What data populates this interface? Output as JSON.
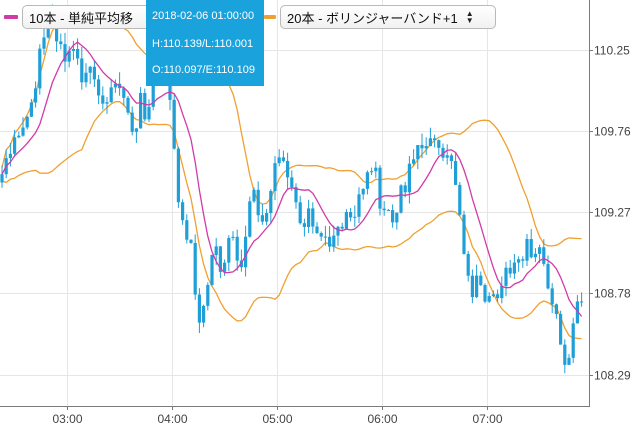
{
  "legend": {
    "items": [
      {
        "label": "10本 - 単純平均移",
        "color": "#d23aa7"
      },
      {
        "label": "20本 - ボリンジャーバンド+1",
        "color": "#f0a030"
      }
    ]
  },
  "tooltip": {
    "time": "2018-02-06 01:00:00",
    "hl": "H:110.139/L:110.001",
    "oe": "O:110.097/E:110.109"
  },
  "chart_data": {
    "type": "candlestick",
    "x_ticks": [
      "03:00",
      "04:00",
      "05:00",
      "06:00",
      "07:00"
    ],
    "y_ticks": [
      108.29,
      108.78,
      109.27,
      109.76,
      110.25
    ],
    "ylim": [
      108.1,
      110.55
    ],
    "grid": true,
    "colors": {
      "candle": "#1e9fd8",
      "sma": "#d23aa7",
      "band": "#f0a030"
    },
    "series": [
      {
        "name": "10本 - 単純平均移",
        "color": "#d23aa7"
      },
      {
        "name": "20本 - ボリンジャーバンド+1",
        "color": "#f0a030"
      }
    ],
    "price_path": [
      [
        0,
        109.45
      ],
      [
        4,
        109.55
      ],
      [
        8,
        109.62
      ],
      [
        12,
        109.7
      ],
      [
        16,
        109.78
      ],
      [
        20,
        109.72
      ],
      [
        24,
        109.8
      ],
      [
        28,
        109.92
      ],
      [
        32,
        109.88
      ],
      [
        36,
        110.02
      ],
      [
        40,
        110.28
      ],
      [
        44,
        110.35
      ],
      [
        48,
        110.42
      ],
      [
        52,
        110.45
      ],
      [
        56,
        110.36
      ],
      [
        60,
        110.3
      ],
      [
        64,
        110.22
      ],
      [
        68,
        110.18
      ],
      [
        72,
        110.32
      ],
      [
        76,
        110.25
      ],
      [
        80,
        110.1
      ],
      [
        84,
        110.0
      ],
      [
        88,
        110.3
      ],
      [
        92,
        110.12
      ],
      [
        96,
        109.95
      ],
      [
        100,
        109.9
      ],
      [
        104,
        110.0
      ],
      [
        108,
        109.92
      ],
      [
        112,
        109.98
      ],
      [
        116,
        110.1
      ],
      [
        120,
        110.02
      ],
      [
        124,
        109.95
      ],
      [
        128,
        109.85
      ],
      [
        132,
        109.78
      ],
      [
        136,
        109.8
      ],
      [
        140,
        109.95
      ],
      [
        144,
        109.82
      ],
      [
        148,
        109.9
      ],
      [
        152,
        110.05
      ],
      [
        156,
        110.35
      ],
      [
        160,
        110.25
      ],
      [
        164,
        110.15
      ],
      [
        168,
        110.05
      ],
      [
        172,
        109.88
      ],
      [
        176,
        109.5
      ],
      [
        180,
        109.3
      ],
      [
        184,
        109.1
      ],
      [
        188,
        109.15
      ],
      [
        192,
        109.0
      ],
      [
        196,
        108.72
      ],
      [
        200,
        108.62
      ],
      [
        204,
        108.7
      ],
      [
        208,
        108.85
      ],
      [
        212,
        108.98
      ],
      [
        216,
        109.05
      ],
      [
        220,
        108.95
      ],
      [
        224,
        108.98
      ],
      [
        228,
        109.1
      ],
      [
        232,
        109.2
      ],
      [
        236,
        109.08
      ],
      [
        240,
        108.92
      ],
      [
        244,
        109.0
      ],
      [
        248,
        109.25
      ],
      [
        252,
        109.4
      ],
      [
        256,
        109.3
      ],
      [
        260,
        109.25
      ],
      [
        264,
        109.2
      ],
      [
        268,
        109.3
      ],
      [
        272,
        109.45
      ],
      [
        276,
        109.55
      ],
      [
        280,
        109.62
      ],
      [
        284,
        109.58
      ],
      [
        288,
        109.5
      ],
      [
        292,
        109.45
      ],
      [
        296,
        109.3
      ],
      [
        300,
        109.25
      ],
      [
        304,
        109.2
      ],
      [
        308,
        109.28
      ],
      [
        312,
        109.15
      ],
      [
        316,
        109.1
      ],
      [
        320,
        109.05
      ],
      [
        324,
        109.12
      ],
      [
        328,
        109.0
      ],
      [
        332,
        109.08
      ],
      [
        336,
        109.15
      ],
      [
        340,
        109.2
      ],
      [
        344,
        109.25
      ],
      [
        348,
        109.32
      ],
      [
        352,
        109.22
      ],
      [
        356,
        109.3
      ],
      [
        360,
        109.42
      ],
      [
        364,
        109.38
      ],
      [
        368,
        109.5
      ],
      [
        372,
        109.55
      ],
      [
        376,
        109.48
      ],
      [
        380,
        109.35
      ],
      [
        384,
        109.3
      ],
      [
        388,
        109.28
      ],
      [
        392,
        109.2
      ],
      [
        396,
        109.3
      ],
      [
        400,
        109.38
      ],
      [
        404,
        109.35
      ],
      [
        408,
        109.5
      ],
      [
        412,
        109.55
      ],
      [
        416,
        109.62
      ],
      [
        420,
        109.75
      ],
      [
        424,
        109.65
      ],
      [
        428,
        109.62
      ],
      [
        432,
        109.7
      ],
      [
        436,
        109.75
      ],
      [
        440,
        109.7
      ],
      [
        444,
        109.62
      ],
      [
        448,
        109.58
      ],
      [
        452,
        109.55
      ],
      [
        456,
        109.4
      ],
      [
        460,
        109.2
      ],
      [
        464,
        109.05
      ],
      [
        468,
        108.85
      ],
      [
        472,
        108.78
      ],
      [
        476,
        108.95
      ],
      [
        480,
        108.9
      ],
      [
        484,
        108.8
      ],
      [
        488,
        108.75
      ],
      [
        492,
        108.78
      ],
      [
        496,
        108.65
      ],
      [
        500,
        108.8
      ],
      [
        504,
        108.95
      ],
      [
        508,
        108.92
      ],
      [
        512,
        108.98
      ],
      [
        516,
        109.0
      ],
      [
        520,
        108.98
      ],
      [
        524,
        109.05
      ],
      [
        528,
        109.15
      ],
      [
        532,
        109.0
      ],
      [
        536,
        109.05
      ],
      [
        540,
        109.02
      ],
      [
        544,
        109.0
      ],
      [
        548,
        108.85
      ],
      [
        552,
        108.78
      ],
      [
        556,
        108.65
      ],
      [
        560,
        108.55
      ],
      [
        564,
        108.35
      ],
      [
        568,
        108.4
      ],
      [
        572,
        108.55
      ],
      [
        576,
        108.72
      ],
      [
        580,
        108.78
      ],
      [
        584,
        108.8
      ]
    ]
  }
}
